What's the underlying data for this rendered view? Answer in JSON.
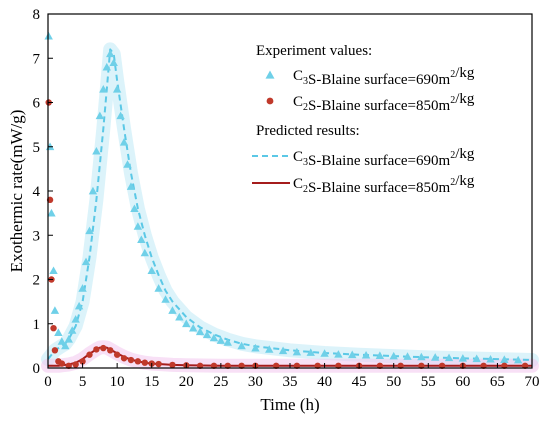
{
  "chart_data": {
    "type": "scatter",
    "xlabel": "Time (h)",
    "ylabel": "Exothermic rate(mW/g)",
    "xlim": [
      0,
      70
    ],
    "ylim": [
      0,
      8
    ],
    "xticks": [
      0,
      5,
      10,
      15,
      20,
      25,
      30,
      35,
      40,
      45,
      50,
      55,
      60,
      65,
      70
    ],
    "yticks": [
      0,
      1,
      2,
      3,
      4,
      5,
      6,
      7,
      8
    ],
    "grid": false,
    "legend_position": "top-right",
    "legend_groups": [
      "Experiment values:",
      "Predicted results:"
    ],
    "series": [
      {
        "group": 0,
        "name": {
          "pre": "C",
          "sub": "3",
          "mid": "S-Blaine surface=690m",
          "sup": "2",
          "post": "/kg"
        },
        "marker": "triangle",
        "color": "#6fd0e8",
        "x": [
          0.1,
          0.3,
          0.5,
          0.8,
          1,
          1.5,
          2,
          2.5,
          3,
          3.5,
          4,
          4.5,
          5,
          5.5,
          6,
          6.5,
          7,
          7.5,
          8,
          8.5,
          9,
          9.5,
          10,
          10.5,
          11,
          11.5,
          12,
          12.5,
          13,
          13.5,
          14,
          15,
          16,
          17,
          18,
          19,
          20,
          21,
          22,
          23,
          24,
          25,
          26,
          28,
          30,
          32,
          34,
          36,
          38,
          40,
          42,
          44,
          46,
          48,
          50,
          52,
          54,
          56,
          58,
          60,
          62,
          64,
          66,
          68
        ],
        "y": [
          7.5,
          5,
          3.5,
          2.2,
          1.3,
          0.8,
          0.6,
          0.5,
          0.65,
          0.85,
          1.1,
          1.4,
          1.8,
          2.4,
          3.1,
          4.0,
          4.9,
          5.7,
          6.3,
          6.8,
          7.1,
          6.9,
          6.3,
          5.7,
          5.1,
          4.6,
          4.1,
          3.6,
          3.2,
          2.9,
          2.6,
          2.2,
          1.8,
          1.55,
          1.3,
          1.15,
          1.0,
          0.9,
          0.82,
          0.75,
          0.68,
          0.62,
          0.58,
          0.5,
          0.45,
          0.42,
          0.39,
          0.36,
          0.35,
          0.33,
          0.31,
          0.3,
          0.29,
          0.28,
          0.27,
          0.26,
          0.25,
          0.24,
          0.23,
          0.22,
          0.21,
          0.2,
          0.19,
          0.18
        ]
      },
      {
        "group": 0,
        "name": {
          "pre": "C",
          "sub": "2",
          "mid": "S-Blaine surface=850m",
          "sup": "2",
          "post": "/kg"
        },
        "marker": "circle",
        "color": "#c0392b",
        "x": [
          0.1,
          0.3,
          0.5,
          0.8,
          1,
          1.5,
          2,
          3,
          4,
          5,
          6,
          7,
          8,
          9,
          10,
          11,
          12,
          13,
          14,
          15,
          16,
          18,
          20,
          22,
          24,
          26,
          28,
          30,
          33,
          36,
          39,
          42,
          45,
          48,
          51,
          54,
          57,
          60,
          63,
          66,
          69
        ],
        "y": [
          6.0,
          3.8,
          2.0,
          0.9,
          0.4,
          0.15,
          0.1,
          0.05,
          0.08,
          0.15,
          0.3,
          0.42,
          0.45,
          0.4,
          0.3,
          0.22,
          0.18,
          0.15,
          0.12,
          0.1,
          0.09,
          0.07,
          0.06,
          0.05,
          0.05,
          0.05,
          0.05,
          0.05,
          0.05,
          0.05,
          0.05,
          0.05,
          0.05,
          0.05,
          0.05,
          0.05,
          0.05,
          0.05,
          0.05,
          0.05,
          0.05
        ]
      },
      {
        "group": 1,
        "name": {
          "pre": "C",
          "sub": "3",
          "mid": "S-Blaine surface=690m",
          "sup": "2",
          "post": "/kg"
        },
        "line": "dashed",
        "color": "#5bc8e6",
        "x": [
          0,
          0.5,
          1,
          1.5,
          2,
          2.5,
          3,
          4,
          5,
          6,
          7,
          8,
          8.5,
          9,
          9.5,
          10,
          11,
          12,
          13,
          14,
          15,
          16,
          17,
          18,
          20,
          22,
          24,
          26,
          28,
          30,
          35,
          40,
          45,
          50,
          55,
          60,
          65,
          70
        ],
        "y": [
          0.2,
          0.3,
          0.4,
          0.45,
          0.5,
          0.55,
          0.65,
          0.95,
          1.5,
          2.5,
          3.8,
          5.4,
          6.3,
          7.2,
          7.1,
          6.5,
          5.4,
          4.4,
          3.6,
          3.0,
          2.5,
          2.1,
          1.75,
          1.5,
          1.15,
          0.92,
          0.76,
          0.64,
          0.55,
          0.49,
          0.4,
          0.34,
          0.3,
          0.27,
          0.24,
          0.22,
          0.2,
          0.18
        ]
      },
      {
        "group": 1,
        "name": {
          "pre": "C",
          "sub": "2",
          "mid": "S-Blaine surface=850m",
          "sup": "2",
          "post": "/kg"
        },
        "line": "solid",
        "color": "#a51c1c",
        "x": [
          0,
          0.5,
          1,
          1.5,
          2,
          3,
          4,
          5,
          6,
          7,
          7.5,
          8,
          8.5,
          9,
          10,
          11,
          12,
          13,
          14,
          15,
          16,
          18,
          20,
          25,
          30,
          35,
          40,
          45,
          50,
          55,
          60,
          65,
          70
        ],
        "y": [
          0.05,
          0.05,
          0.05,
          0.05,
          0.06,
          0.08,
          0.12,
          0.2,
          0.32,
          0.42,
          0.46,
          0.47,
          0.46,
          0.42,
          0.33,
          0.25,
          0.19,
          0.15,
          0.12,
          0.1,
          0.09,
          0.07,
          0.06,
          0.05,
          0.05,
          0.05,
          0.05,
          0.05,
          0.05,
          0.05,
          0.05,
          0.05,
          0.05
        ]
      }
    ]
  }
}
